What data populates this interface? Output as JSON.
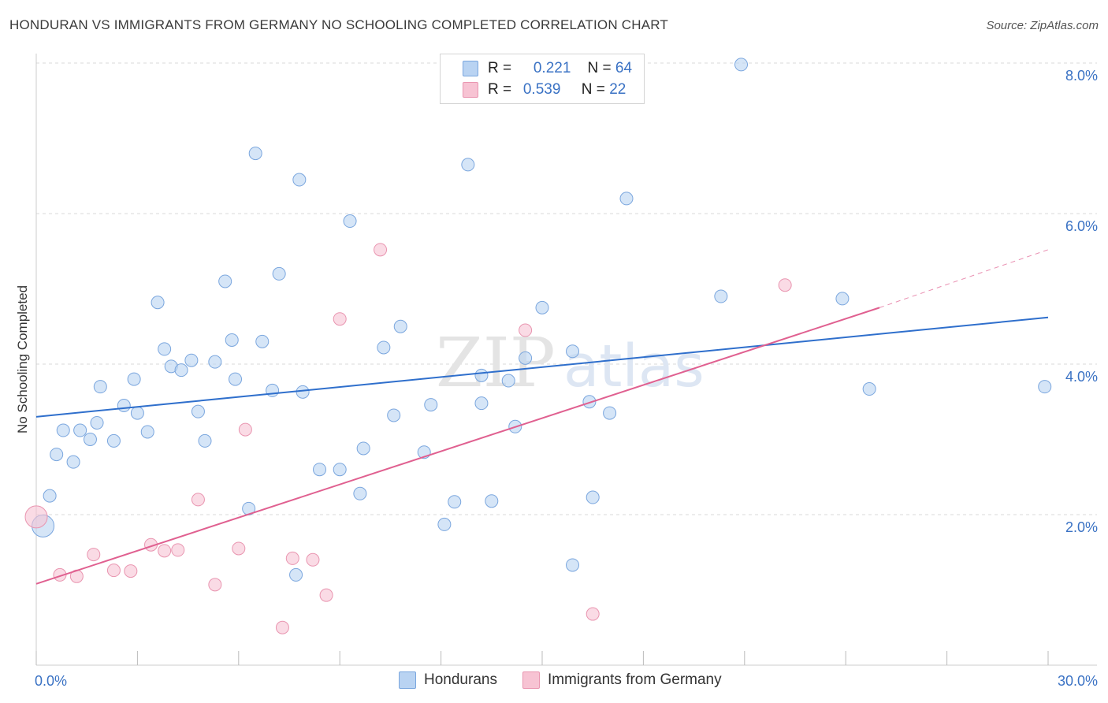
{
  "header": {
    "title": "HONDURAN VS IMMIGRANTS FROM GERMANY NO SCHOOLING COMPLETED CORRELATION CHART",
    "source": "Source: ZipAtlas.com"
  },
  "watermark": {
    "part1": "ZIP",
    "part2": "atlas"
  },
  "legend_top": {
    "rows": [
      {
        "r_label": "R =",
        "r_value": "0.221",
        "n_label": "N =",
        "n_value": "64"
      },
      {
        "r_label": "R =",
        "r_value": "0.539",
        "n_label": "N =",
        "n_value": "22"
      }
    ]
  },
  "legend_bottom": {
    "series1": "Hondurans",
    "series2": "Immigrants from Germany"
  },
  "colors": {
    "hondurans_fill": "#b9d3f2",
    "hondurans_stroke": "#7aa6de",
    "hondurans_line": "#2f6fcc",
    "germany_fill": "#f7c3d3",
    "germany_stroke": "#e995b0",
    "germany_line": "#e06090",
    "tick_label": "#3a72c4",
    "grid": "#d9d9d9"
  },
  "chart_data": {
    "type": "scatter",
    "title": "HONDURAN VS IMMIGRANTS FROM GERMANY NO SCHOOLING COMPLETED CORRELATION CHART",
    "xlabel": "",
    "ylabel": "No Schooling Completed",
    "xlim": [
      0,
      30
    ],
    "ylim": [
      0,
      8.3
    ],
    "x_tick_labels": [
      "0.0%",
      "30.0%"
    ],
    "y_ticks": [
      2,
      4,
      6,
      8
    ],
    "y_tick_labels": [
      "2.0%",
      "4.0%",
      "6.0%",
      "8.0%"
    ],
    "grid": "horizontal dashed",
    "legend_position": "top-center",
    "series": [
      {
        "name": "Hondurans",
        "r": 0.221,
        "n": 64,
        "trend": {
          "x": [
            0,
            30
          ],
          "y": [
            3.3,
            4.62
          ]
        },
        "points": [
          [
            0.2,
            1.85
          ],
          [
            0.4,
            2.25
          ],
          [
            0.6,
            2.8
          ],
          [
            0.8,
            3.12
          ],
          [
            1.1,
            2.7
          ],
          [
            1.3,
            3.12
          ],
          [
            1.6,
            3.0
          ],
          [
            1.9,
            3.7
          ],
          [
            1.8,
            3.22
          ],
          [
            2.3,
            2.98
          ],
          [
            2.6,
            3.45
          ],
          [
            2.9,
            3.8
          ],
          [
            3.0,
            3.35
          ],
          [
            3.3,
            3.1
          ],
          [
            3.6,
            4.82
          ],
          [
            3.8,
            4.2
          ],
          [
            4.0,
            3.97
          ],
          [
            4.3,
            3.92
          ],
          [
            4.6,
            4.05
          ],
          [
            4.8,
            3.37
          ],
          [
            5.0,
            2.98
          ],
          [
            5.3,
            4.03
          ],
          [
            5.6,
            5.1
          ],
          [
            5.8,
            4.32
          ],
          [
            5.9,
            3.8
          ],
          [
            6.3,
            2.08
          ],
          [
            6.5,
            6.8
          ],
          [
            6.7,
            4.3
          ],
          [
            7.0,
            3.65
          ],
          [
            7.2,
            5.2
          ],
          [
            7.7,
            1.2
          ],
          [
            7.8,
            6.45
          ],
          [
            7.9,
            3.63
          ],
          [
            8.4,
            2.6
          ],
          [
            9.0,
            2.6
          ],
          [
            9.3,
            5.9
          ],
          [
            9.6,
            2.28
          ],
          [
            9.7,
            2.88
          ],
          [
            10.3,
            4.22
          ],
          [
            10.6,
            3.32
          ],
          [
            10.8,
            4.5
          ],
          [
            11.5,
            2.83
          ],
          [
            11.7,
            3.46
          ],
          [
            12.1,
            1.87
          ],
          [
            12.4,
            2.17
          ],
          [
            12.8,
            6.65
          ],
          [
            13.2,
            3.48
          ],
          [
            13.5,
            2.18
          ],
          [
            13.2,
            3.85
          ],
          [
            14.0,
            3.78
          ],
          [
            14.2,
            3.17
          ],
          [
            14.5,
            4.08
          ],
          [
            15.0,
            4.75
          ],
          [
            15.9,
            1.33
          ],
          [
            15.9,
            4.17
          ],
          [
            16.4,
            3.5
          ],
          [
            16.5,
            2.23
          ],
          [
            17.0,
            3.35
          ],
          [
            17.5,
            6.2
          ],
          [
            20.3,
            4.9
          ],
          [
            20.9,
            7.98
          ],
          [
            23.9,
            4.87
          ],
          [
            24.7,
            3.67
          ],
          [
            29.9,
            3.7
          ]
        ],
        "point_sizes": {
          "default": 8,
          "large": [
            [
              0.2,
              1.85
            ]
          ]
        }
      },
      {
        "name": "Immigrants from Germany",
        "r": 0.539,
        "n": 22,
        "trend": {
          "x": [
            0,
            25
          ],
          "y": [
            1.08,
            4.75
          ]
        },
        "trend_dashed_extension": {
          "x": [
            25,
            30
          ],
          "y": [
            4.75,
            5.52
          ]
        },
        "points": [
          [
            0.0,
            1.97
          ],
          [
            0.7,
            1.2
          ],
          [
            1.2,
            1.18
          ],
          [
            1.7,
            1.47
          ],
          [
            2.3,
            1.26
          ],
          [
            2.8,
            1.25
          ],
          [
            3.4,
            1.6
          ],
          [
            3.8,
            1.52
          ],
          [
            4.2,
            1.53
          ],
          [
            4.8,
            2.2
          ],
          [
            5.3,
            1.07
          ],
          [
            6.0,
            1.55
          ],
          [
            6.2,
            3.13
          ],
          [
            7.3,
            0.5
          ],
          [
            7.6,
            1.42
          ],
          [
            8.2,
            1.4
          ],
          [
            8.6,
            0.93
          ],
          [
            9.0,
            4.6
          ],
          [
            10.2,
            5.52
          ],
          [
            14.5,
            4.45
          ],
          [
            16.5,
            0.68
          ],
          [
            22.2,
            5.05
          ]
        ],
        "point_sizes": {
          "default": 8,
          "large": [
            [
              0.0,
              1.97
            ]
          ]
        }
      }
    ]
  }
}
